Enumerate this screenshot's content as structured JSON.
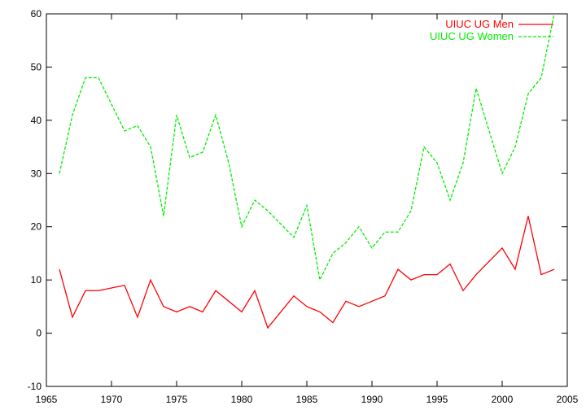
{
  "chart_data": {
    "type": "line",
    "title": "",
    "xlabel": "",
    "ylabel": "",
    "xlim": [
      1965,
      2005
    ],
    "ylim": [
      -10,
      60
    ],
    "xticks": [
      "1965",
      "1970",
      "1975",
      "1980",
      "1985",
      "1990",
      "1995",
      "2000",
      "2005"
    ],
    "yticks": [
      "-10",
      "0",
      "10",
      "20",
      "30",
      "40",
      "50",
      "60"
    ],
    "grid": false,
    "legend_position": "top-right",
    "x": [
      1966,
      1967,
      1968,
      1969,
      1971,
      1972,
      1973,
      1974,
      1975,
      1976,
      1977,
      1978,
      1979,
      1980,
      1981,
      1982,
      1984,
      1985,
      1986,
      1987,
      1988,
      1989,
      1990,
      1991,
      1992,
      1993,
      1994,
      1995,
      1996,
      1997,
      1998,
      2000,
      2001,
      2002,
      2003,
      2004
    ],
    "series": [
      {
        "name": "UIUC UG Men",
        "color": "#ff0000",
        "dash": "solid",
        "values": [
          12,
          3,
          8,
          8,
          9,
          3,
          10,
          5,
          4,
          5,
          4,
          8,
          6,
          4,
          8,
          1,
          7,
          5,
          4,
          2,
          6,
          5,
          6,
          7,
          12,
          10,
          11,
          11,
          13,
          8,
          11,
          16,
          12,
          22,
          11,
          12
        ]
      },
      {
        "name": "UIUC UG Women",
        "color": "#00ee00",
        "dash": "dashed",
        "values": [
          30,
          41,
          48,
          48,
          38,
          39,
          35,
          22,
          41,
          33,
          34,
          41,
          32,
          20,
          25,
          23,
          18,
          24,
          10,
          15,
          17,
          20,
          16,
          19,
          19,
          23,
          35,
          32,
          25,
          32,
          46,
          30,
          35,
          45,
          48,
          60
        ]
      }
    ]
  }
}
